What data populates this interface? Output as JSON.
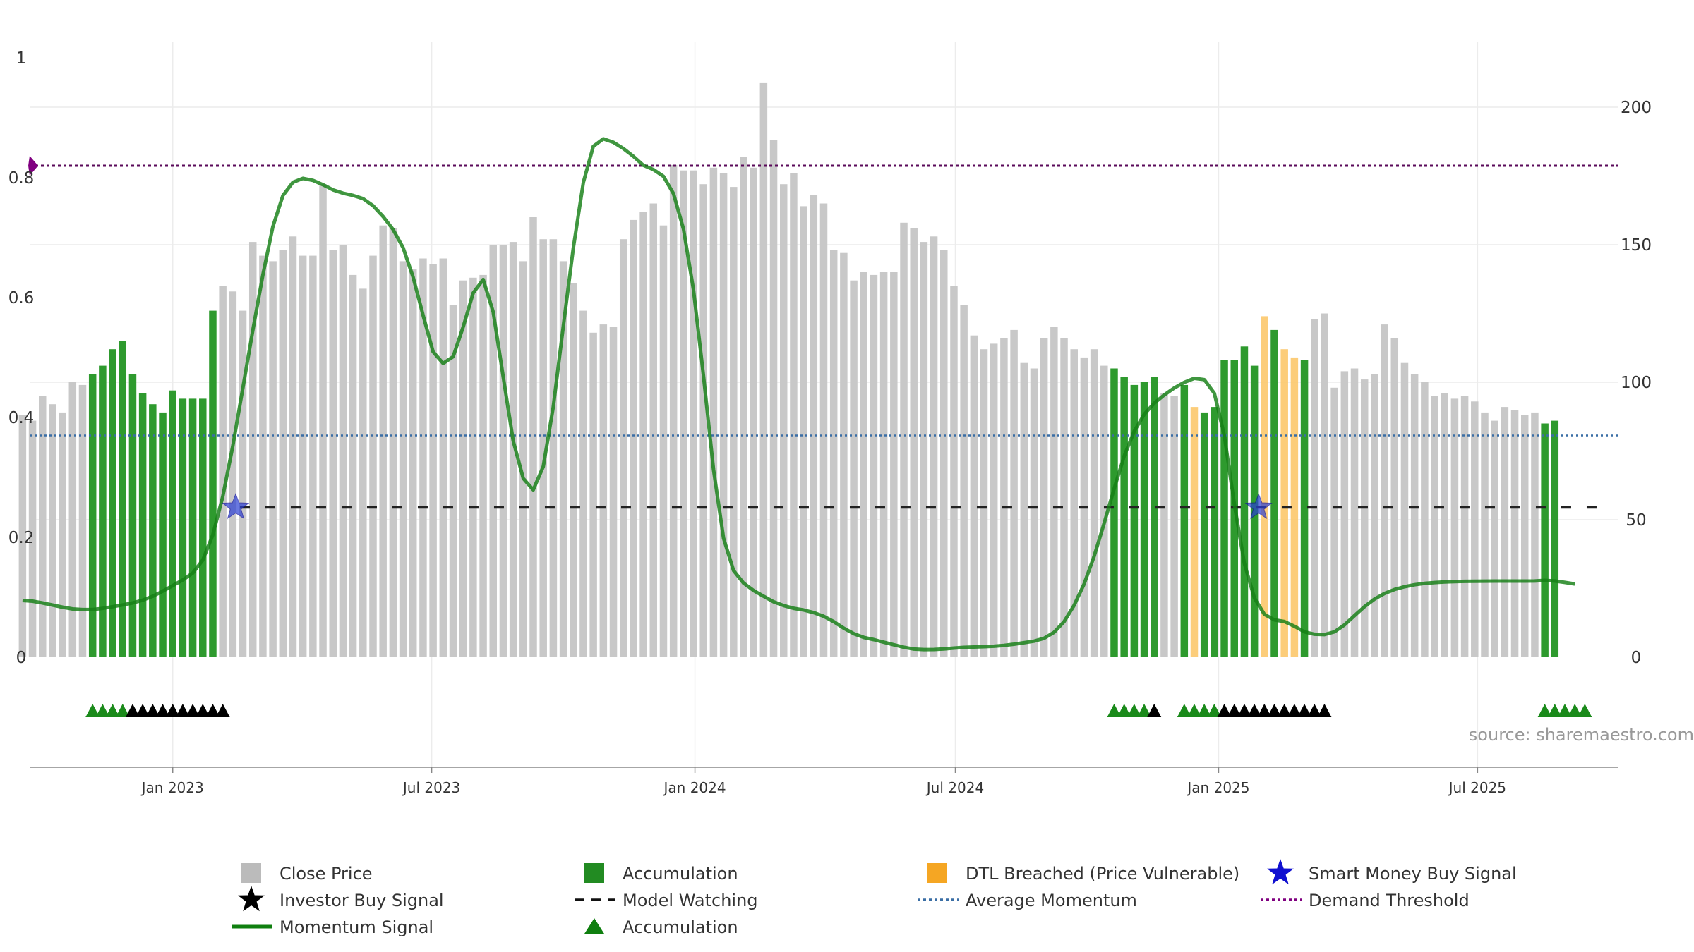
{
  "chart_data": {
    "type": "bar",
    "title": "",
    "source": "source: sharemaestro.com",
    "left_axis": {
      "range": [
        0,
        1
      ],
      "ticks": [
        0,
        0.2,
        0.4,
        0.6,
        0.8,
        1
      ],
      "tick_labels": [
        "0",
        "0.2",
        "0.4",
        "0.6",
        "0.8",
        "1"
      ]
    },
    "right_axis": {
      "range": [
        0,
        219
      ],
      "ticks": [
        0,
        50,
        100,
        150,
        200
      ],
      "tick_labels": [
        "0",
        "50",
        "100",
        "150",
        "200"
      ]
    },
    "x_axis": {
      "range_days": [
        -100,
        1010
      ],
      "ticks": [
        {
          "label": "Jan 2023",
          "day": 0
        },
        {
          "label": "Jul 2023",
          "day": 181
        },
        {
          "label": "Jan 2024",
          "day": 365
        },
        {
          "label": "Jul 2024",
          "day": 547
        },
        {
          "label": "Jan 2025",
          "day": 731
        },
        {
          "label": "Jul 2025",
          "day": 912
        }
      ]
    },
    "bars": {
      "start_day": -105,
      "step_days": 7,
      "values": [
        88,
        86,
        95,
        92,
        89,
        100,
        99,
        103,
        106,
        112,
        115,
        103,
        96,
        92,
        89,
        97,
        94,
        94,
        94,
        126,
        135,
        133,
        126,
        151,
        146,
        144,
        148,
        153,
        146,
        146,
        172,
        148,
        150,
        139,
        134,
        146,
        157,
        156,
        144,
        141,
        145,
        143,
        145,
        128,
        137,
        138,
        139,
        150,
        150,
        151,
        144,
        160,
        152,
        152,
        144,
        136,
        126,
        118,
        121,
        120,
        152,
        159,
        162,
        165,
        157,
        179,
        177,
        177,
        172,
        178,
        176,
        171,
        182,
        178,
        209,
        188,
        172,
        176,
        164,
        168,
        165,
        148,
        147,
        137,
        140,
        139,
        140,
        140,
        158,
        156,
        151,
        153,
        148,
        135,
        128,
        117,
        112,
        114,
        116,
        119,
        107,
        105,
        116,
        120,
        116,
        112,
        109,
        112,
        106,
        105,
        102,
        99,
        100,
        102,
        96,
        95,
        99,
        91,
        89,
        91,
        108,
        108,
        113,
        106,
        124,
        119,
        112,
        109,
        108,
        123,
        125,
        98,
        104,
        105,
        101,
        103,
        121,
        116,
        107,
        103,
        100,
        95,
        96,
        94,
        95,
        93,
        89,
        86,
        91,
        90,
        88,
        89,
        85,
        86
      ]
    },
    "accumulation_ranges": [
      [
        7,
        19
      ],
      [
        109,
        113
      ],
      [
        116,
        128
      ],
      [
        152,
        156
      ]
    ],
    "dtl_bars": [
      117,
      124,
      126,
      127
    ],
    "momentum": {
      "start_day": -105,
      "step_days": 7,
      "values": [
        0.0947,
        0.0935,
        0.0906,
        0.0871,
        0.0835,
        0.0806,
        0.0795,
        0.0797,
        0.0815,
        0.0844,
        0.0873,
        0.0906,
        0.0952,
        0.1017,
        0.1102,
        0.1195,
        0.1289,
        0.1405,
        0.1621,
        0.2041,
        0.2681,
        0.3524,
        0.4487,
        0.5456,
        0.6378,
        0.7185,
        0.7702,
        0.7923,
        0.7989,
        0.7955,
        0.7883,
        0.7798,
        0.7742,
        0.7705,
        0.7652,
        0.7533,
        0.7353,
        0.7136,
        0.6833,
        0.6345,
        0.5707,
        0.5097,
        0.4902,
        0.5014,
        0.5509,
        0.6076,
        0.6301,
        0.5759,
        0.4682,
        0.3611,
        0.2984,
        0.2793,
        0.3181,
        0.4179,
        0.5524,
        0.6829,
        0.7922,
        0.8524,
        0.8648,
        0.8591,
        0.8487,
        0.8356,
        0.8206,
        0.8135,
        0.8022,
        0.7734,
        0.7142,
        0.6132,
        0.4693,
        0.3132,
        0.1987,
        0.1446,
        0.1237,
        0.1113,
        0.1017,
        0.0925,
        0.0862,
        0.0816,
        0.0788,
        0.0745,
        0.0683,
        0.0594,
        0.0485,
        0.0393,
        0.0331,
        0.0294,
        0.0251,
        0.0208,
        0.0167,
        0.0136,
        0.0128,
        0.0129,
        0.0138,
        0.0153,
        0.0165,
        0.0171,
        0.0176,
        0.0184,
        0.0198,
        0.0218,
        0.0242,
        0.0268,
        0.0316,
        0.0417,
        0.0593,
        0.0866,
        0.1221,
        0.1684,
        0.2235,
        0.2813,
        0.3356,
        0.3769,
        0.4053,
        0.4238,
        0.4375,
        0.4492,
        0.4586,
        0.4653,
        0.4632,
        0.4404,
        0.3698,
        0.2551,
        0.1568,
        0.0991,
        0.0717,
        0.0624,
        0.0595,
        0.0516,
        0.0424,
        0.0383,
        0.0378,
        0.0424,
        0.0539,
        0.0694,
        0.0843,
        0.0971,
        0.1063,
        0.1131,
        0.1176,
        0.1209,
        0.1232,
        0.1246,
        0.1256,
        0.1262,
        0.1266,
        0.1268,
        0.1269,
        0.127,
        0.127,
        0.127,
        0.127,
        0.1272,
        0.1282,
        0.1272,
        0.1248,
        0.1222
      ]
    },
    "average_momentum": 0.37,
    "demand_threshold": 0.82,
    "model_watching": {
      "value": 0.25,
      "from_day": 47,
      "to_day": 1000
    },
    "smart_money_buy_signals": [
      {
        "day": 44,
        "value": 0.25
      },
      {
        "day": 759,
        "value": 0.25
      }
    ],
    "signal_rows": {
      "accumulation_triangles": [
        [
          7,
          10
        ],
        [
          109,
          112
        ],
        [
          116,
          119
        ],
        [
          152,
          156
        ]
      ],
      "investor_buy_triangles": [
        [
          11,
          20
        ],
        [
          113,
          113
        ],
        [
          120,
          130
        ]
      ]
    },
    "legend": [
      {
        "label": "Close Price",
        "color": "#bbbbbb"
      },
      {
        "label": "Accumulation",
        "color": "#228b22"
      },
      {
        "label": "DTL Breached (Price Vulnerable)",
        "color": "#f5a623"
      },
      {
        "label": "Smart Money Buy Signal",
        "color": "#1010d0"
      },
      {
        "label": "Investor Buy Signal",
        "color": "#000000"
      },
      {
        "label": "Model Watching",
        "color": "#111111"
      },
      {
        "label": "Average Momentum",
        "color": "#3a6ea5"
      },
      {
        "label": "Demand Threshold",
        "color": "#800080"
      },
      {
        "label": "Momentum Signal",
        "color": "#0f7f0f"
      },
      {
        "label": "Accumulation",
        "color": "#0f7f0f"
      }
    ]
  }
}
